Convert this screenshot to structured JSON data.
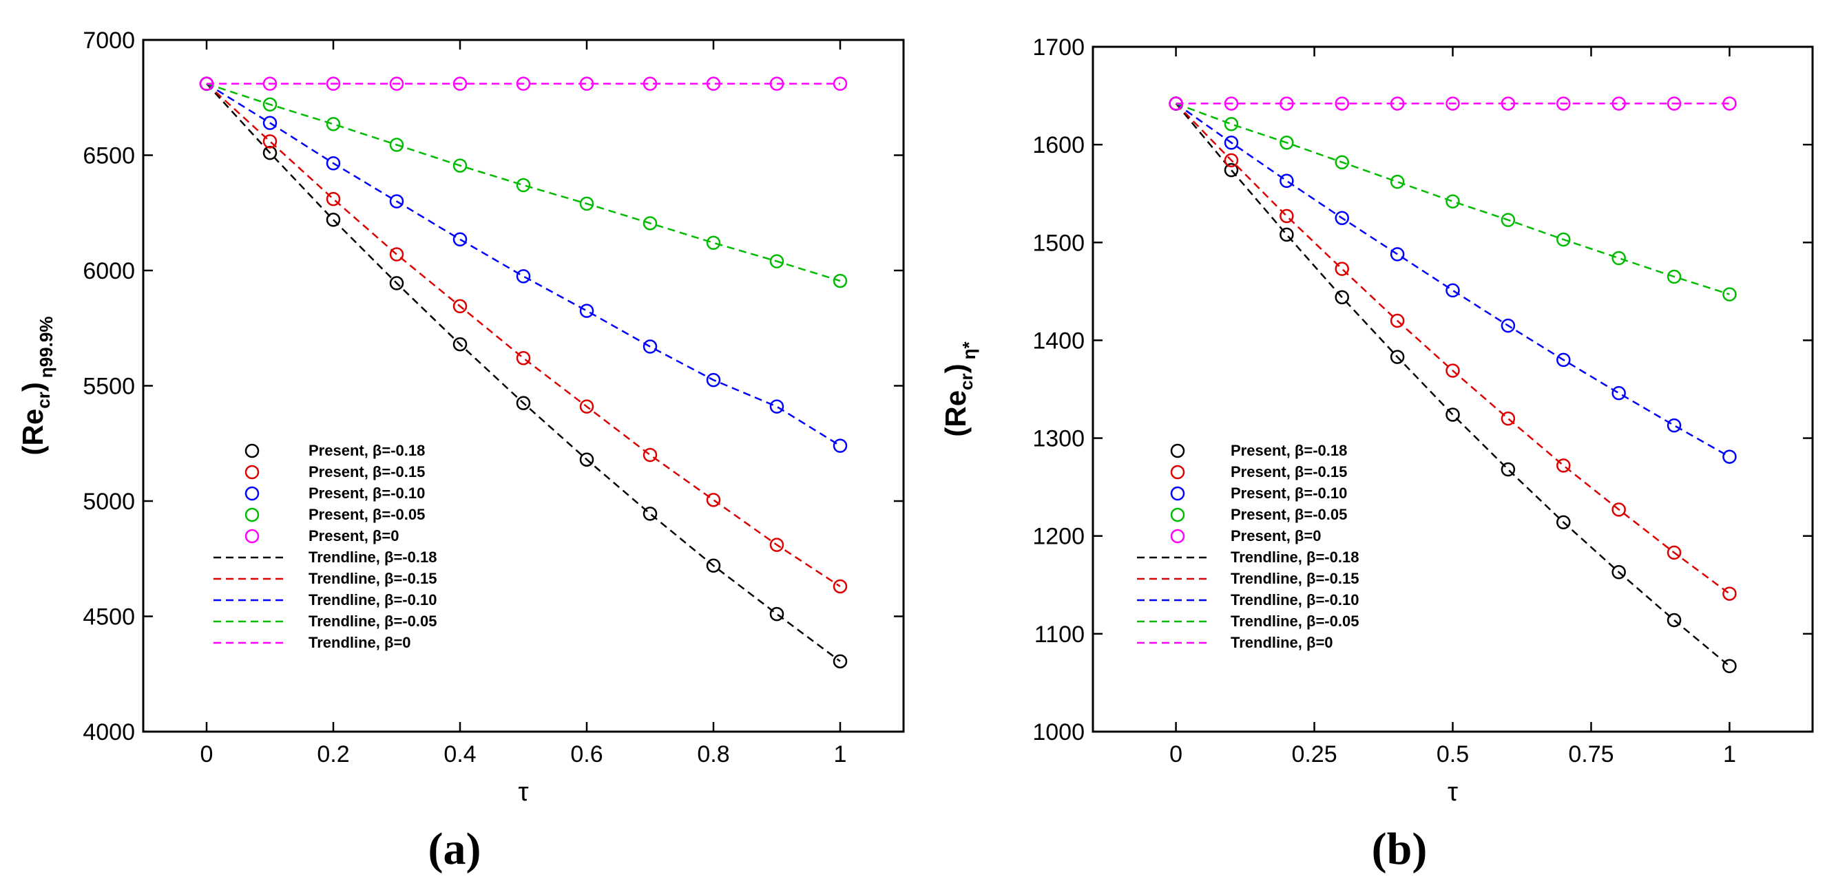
{
  "chart_data": [
    {
      "type": "line",
      "panel_label": "(a)",
      "xlabel": "τ",
      "ylabel_main": "(Re",
      "ylabel_sub": "cr",
      "ylabel_close": ")",
      "ylabel_subscript2": "η99.9%",
      "xlim": [
        -0.1,
        1.1
      ],
      "ylim": [
        4000,
        7000
      ],
      "xticks": [
        0,
        0.2,
        0.4,
        0.6,
        0.8,
        1
      ],
      "xtick_labels": [
        "0",
        "0.2",
        "0.4",
        "0.6",
        "0.8",
        "1"
      ],
      "yticks": [
        4000,
        4500,
        5000,
        5500,
        6000,
        6500,
        7000
      ],
      "ytick_labels": [
        "4000",
        "4500",
        "5000",
        "5500",
        "6000",
        "6500",
        "7000"
      ],
      "x": [
        0,
        0.1,
        0.2,
        0.3,
        0.4,
        0.5,
        0.6,
        0.7,
        0.8,
        0.9,
        1
      ],
      "legend_position": "bottom-left",
      "series": [
        {
          "name": "Present, β=-0.18",
          "trend_name": "Trendline, β=-0.18",
          "color": "#000000",
          "values": [
            6810,
            6510,
            6220,
            5945,
            5680,
            5425,
            5180,
            4945,
            4720,
            4510,
            4305
          ]
        },
        {
          "name": "Present, β=-0.15",
          "trend_name": "Trendline, β=-0.15",
          "color": "#dd0000",
          "values": [
            6810,
            6560,
            6310,
            6070,
            5845,
            5620,
            5410,
            5200,
            5005,
            4810,
            4630
          ]
        },
        {
          "name": "Present, β=-0.10",
          "trend_name": "Trendline, β=-0.10",
          "color": "#0000ff",
          "values": [
            6810,
            6640,
            6465,
            6300,
            6135,
            5975,
            5825,
            5670,
            5525,
            5410,
            5240
          ]
        },
        {
          "name": "Present, β=-0.05",
          "trend_name": "Trendline, β=-0.05",
          "color": "#00bb00",
          "values": [
            6810,
            6720,
            6635,
            6545,
            6455,
            6370,
            6290,
            6205,
            6120,
            6040,
            5955
          ]
        },
        {
          "name": "Present, β=0",
          "trend_name": "Trendline, β=0",
          "color": "#ff00ff",
          "values": [
            6810,
            6810,
            6810,
            6810,
            6810,
            6810,
            6810,
            6810,
            6810,
            6810,
            6810
          ]
        }
      ]
    },
    {
      "type": "line",
      "panel_label": "(b)",
      "xlabel": "τ",
      "ylabel_main": "(Re",
      "ylabel_sub": "cr",
      "ylabel_close": ")",
      "ylabel_subscript2": "η*",
      "xlim": [
        -0.15,
        1.15
      ],
      "ylim": [
        1000,
        1700
      ],
      "xticks": [
        0,
        0.25,
        0.5,
        0.75,
        1
      ],
      "xtick_labels": [
        "0",
        "0.25",
        "0.5",
        "0.75",
        "1"
      ],
      "yticks": [
        1000,
        1100,
        1200,
        1300,
        1400,
        1500,
        1600,
        1700
      ],
      "ytick_labels": [
        "1000",
        "1100",
        "1200",
        "1300",
        "1400",
        "1500",
        "1600",
        "1700"
      ],
      "x": [
        0,
        0.1,
        0.2,
        0.3,
        0.4,
        0.5,
        0.6,
        0.7,
        0.8,
        0.9,
        1
      ],
      "legend_position": "bottom-left",
      "series": [
        {
          "name": "Present, β=-0.18",
          "trend_name": "Trendline, β=-0.18",
          "color": "#000000",
          "values": [
            1642,
            1574,
            1508,
            1444,
            1383,
            1324,
            1268,
            1214,
            1163,
            1114,
            1067
          ]
        },
        {
          "name": "Present, β=-0.15",
          "trend_name": "Trendline, β=-0.15",
          "color": "#dd0000",
          "values": [
            1642,
            1584,
            1527,
            1473,
            1420,
            1369,
            1320,
            1272,
            1227,
            1183,
            1141
          ]
        },
        {
          "name": "Present, β=-0.10",
          "trend_name": "Trendline, β=-0.10",
          "color": "#0000ff",
          "values": [
            1642,
            1602,
            1563,
            1525,
            1488,
            1451,
            1415,
            1380,
            1346,
            1313,
            1281
          ]
        },
        {
          "name": "Present, β=-0.05",
          "trend_name": "Trendline, β=-0.05",
          "color": "#00bb00",
          "values": [
            1642,
            1621,
            1602,
            1582,
            1562,
            1542,
            1523,
            1503,
            1484,
            1465,
            1447
          ]
        },
        {
          "name": "Present, β=0",
          "trend_name": "Trendline, β=0",
          "color": "#ff00ff",
          "values": [
            1642,
            1642,
            1642,
            1642,
            1642,
            1642,
            1642,
            1642,
            1642,
            1642,
            1642
          ]
        }
      ]
    }
  ]
}
